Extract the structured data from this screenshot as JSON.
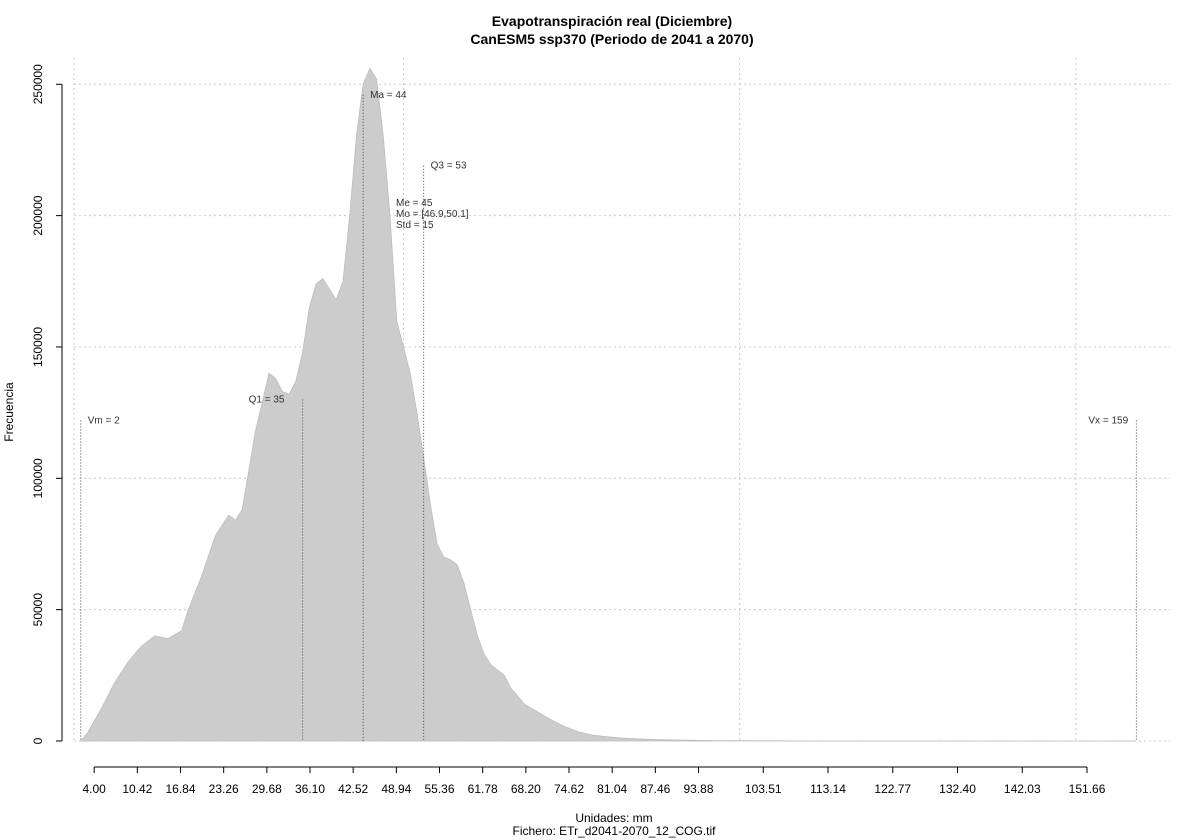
{
  "chart_data": {
    "type": "area",
    "title": "Evapotranspiración real (Diciembre)",
    "subtitle": "CanESM5 ssp370 (Periodo de 2041 a 2070)",
    "xlabel": "Unidades: mm",
    "ylabel": "Frecuencia",
    "footer": "Fichero: ETr_d2041-2070_12_COG.tif",
    "xlim": [
      1,
      164
    ],
    "ylim": [
      0,
      260000
    ],
    "grid": true,
    "y_ticks": [
      0,
      50000,
      100000,
      150000,
      200000,
      250000
    ],
    "y_tick_labels": [
      "0",
      "50000",
      "100000",
      "150000",
      "200000",
      "250000"
    ],
    "x_ticks": [
      4.0,
      10.42,
      16.84,
      23.26,
      29.68,
      36.1,
      42.52,
      48.94,
      55.36,
      61.78,
      68.2,
      74.62,
      81.04,
      87.46,
      93.88,
      103.51,
      113.14,
      122.77,
      132.4,
      142.03,
      151.66
    ],
    "x_tick_labels": [
      "4.00",
      "10.42",
      "16.84",
      "23.26",
      "29.68",
      "36.10",
      "42.52",
      "48.94",
      "55.36",
      "61.78",
      "68.20",
      "74.62",
      "81.04",
      "87.46",
      "93.88",
      "103.51",
      "113.14",
      "122.77",
      "132.40",
      "142.03",
      "151.66"
    ],
    "x_grid": [
      1,
      50,
      100,
      150
    ],
    "x": [
      2,
      3,
      5,
      7,
      9,
      11,
      13,
      15,
      17,
      18,
      20,
      22,
      24,
      25,
      26,
      28,
      30,
      31,
      32,
      33,
      34,
      35,
      36,
      37,
      38,
      39,
      40,
      41,
      42,
      43,
      44,
      45,
      46,
      47,
      48,
      49,
      50,
      51,
      52,
      53,
      54,
      55,
      56,
      57,
      58,
      59,
      60,
      61,
      62,
      63,
      64,
      65,
      66,
      67,
      68,
      70,
      72,
      74,
      76,
      78,
      80,
      82,
      84,
      86,
      88,
      90,
      93,
      96,
      100,
      105,
      110,
      120,
      130,
      140,
      150,
      159
    ],
    "values": [
      0,
      3000,
      12000,
      22000,
      30000,
      36000,
      40000,
      39000,
      42000,
      50000,
      63000,
      78000,
      86000,
      84000,
      88000,
      118000,
      140000,
      138000,
      133000,
      132000,
      137000,
      148000,
      165000,
      174000,
      176000,
      172000,
      168000,
      175000,
      200000,
      230000,
      250000,
      256000,
      252000,
      230000,
      200000,
      160000,
      150000,
      140000,
      125000,
      108000,
      90000,
      75000,
      70000,
      69000,
      67000,
      60000,
      50000,
      40000,
      33000,
      29000,
      27000,
      25000,
      20000,
      17000,
      14000,
      11000,
      8000,
      5500,
      3500,
      2300,
      1700,
      1200,
      900,
      700,
      500,
      400,
      250,
      150,
      100,
      60,
      40,
      25,
      15,
      10,
      5,
      2
    ],
    "fill_color": "#cccccc",
    "annotations": [
      {
        "label": "Vm = 2",
        "x": 2,
        "line_top": 122000
      },
      {
        "label": "Q1 = 35",
        "x": 35,
        "line_top": 130000
      },
      {
        "label": "Ma = 44",
        "x": 44,
        "line_top": 246000
      },
      {
        "label": "Q3 = 53",
        "x": 53,
        "line_top": 219000
      },
      {
        "label": "Vx = 159",
        "x": 159,
        "line_top": 122000
      }
    ],
    "stats": [
      "Me = 45",
      "Mo = [46.9,50.1]",
      "Std = 15"
    ]
  }
}
